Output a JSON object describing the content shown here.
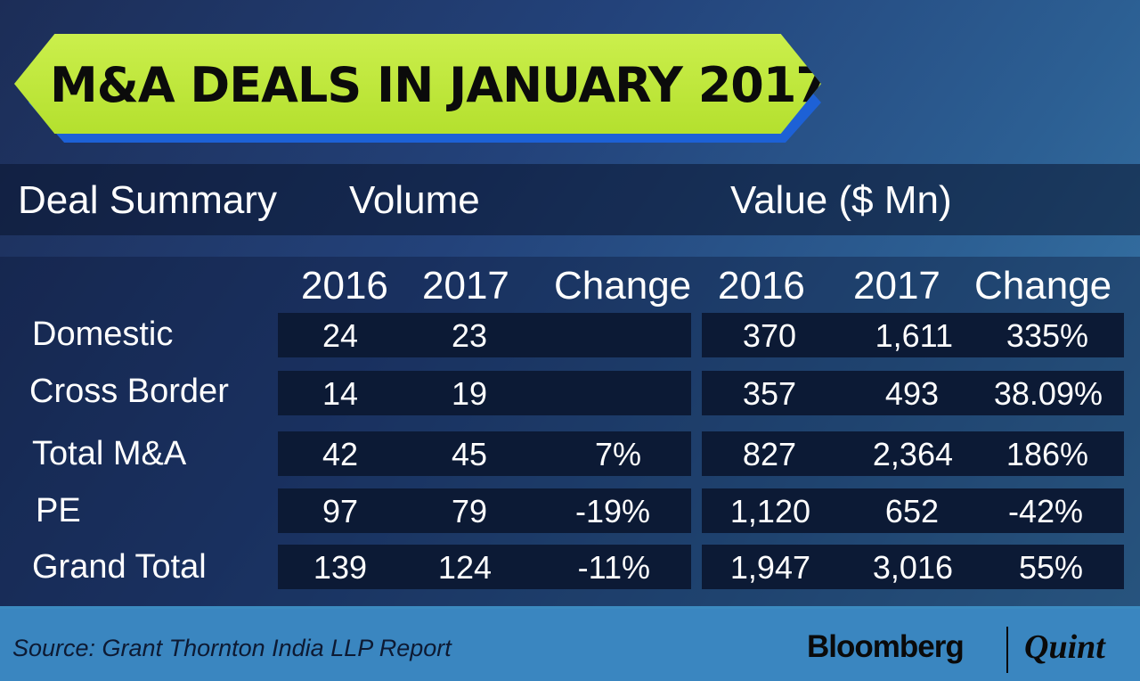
{
  "title": "M&A DEALS IN JANUARY 2017",
  "headers": {
    "deal_summary": "Deal Summary",
    "volume": "Volume",
    "value": "Value ($ Mn)"
  },
  "subheaders": [
    "2016",
    "2017",
    "Change",
    "2016",
    "2017",
    "Change"
  ],
  "chart_data": {
    "type": "table",
    "title": "M&A DEALS IN JANUARY 2017",
    "column_groups": [
      "Volume",
      "Value ($ Mn)"
    ],
    "columns": [
      "2016",
      "2017",
      "Change",
      "2016",
      "2017",
      "Change"
    ],
    "rows": [
      {
        "label": "Domestic",
        "cells": [
          "24",
          "23",
          "",
          "370",
          "1,611",
          "335%"
        ]
      },
      {
        "label": "Cross Border",
        "cells": [
          "14",
          "19",
          "",
          "357",
          "493",
          "38.09%"
        ]
      },
      {
        "label": "Total M&A",
        "cells": [
          "42",
          "45",
          "7%",
          "827",
          "2,364",
          "186%"
        ]
      },
      {
        "label": "PE",
        "cells": [
          "97",
          "79",
          "-19%",
          "1,120",
          "652",
          "-42%"
        ]
      },
      {
        "label": "Grand Total",
        "cells": [
          "139",
          "124",
          "-11%",
          "1,947",
          "3,016",
          "55%"
        ]
      }
    ]
  },
  "footer": {
    "source": "Source: Grant Thornton India LLP Report",
    "logo_left": "Bloomberg",
    "logo_right": "Quint"
  },
  "colors": {
    "banner": "#c3ea3f",
    "banner_shadow": "#1d61d6",
    "row_box": "#0c1a35",
    "footer": "#3a86c0"
  }
}
